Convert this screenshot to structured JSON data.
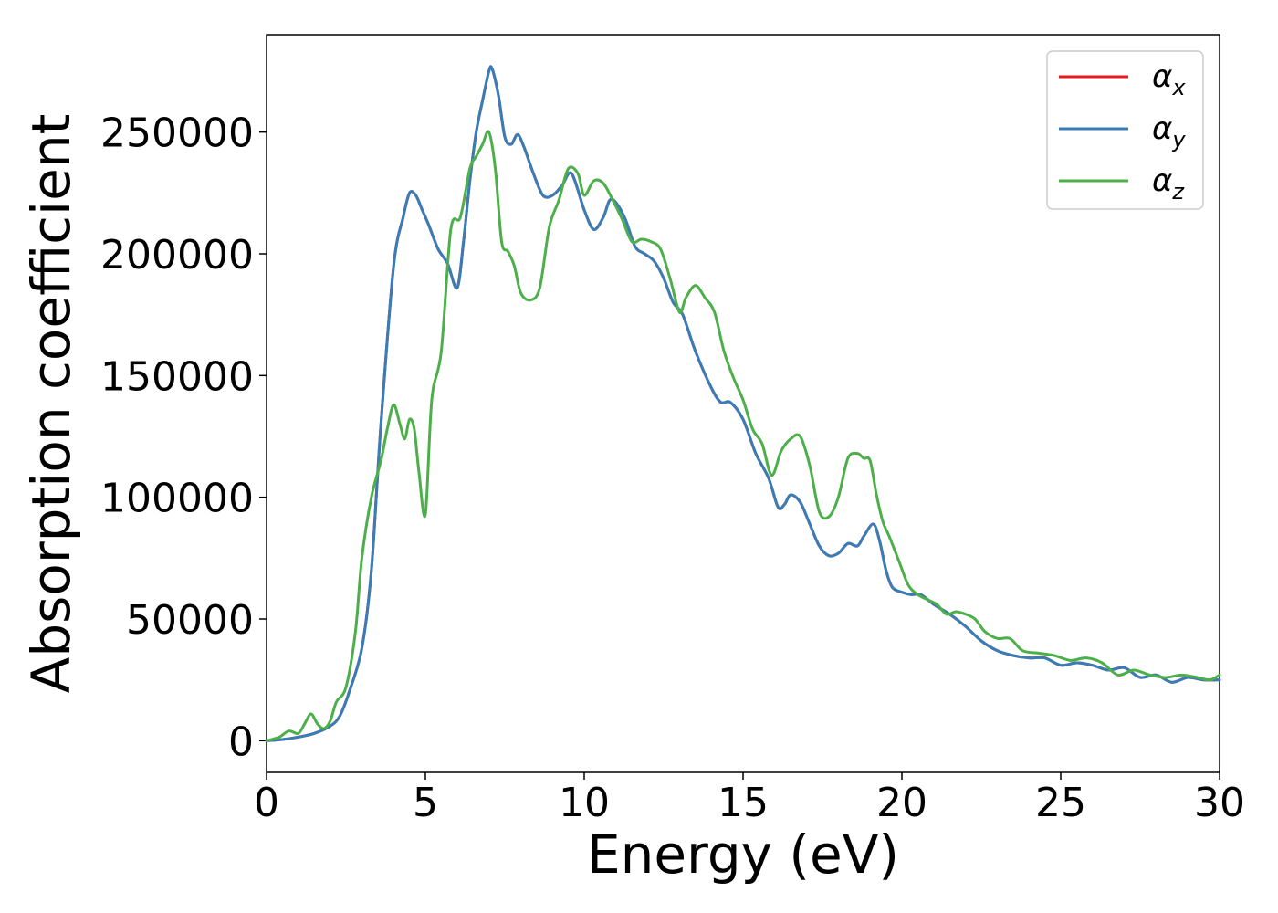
{
  "chart_data": {
    "type": "line",
    "title": "",
    "xlabel": "Energy (eV)",
    "ylabel": "Absorption coefficient",
    "xlim": [
      0,
      30
    ],
    "ylim": [
      -13000,
      290000
    ],
    "xticks": [
      0,
      5,
      10,
      15,
      20,
      25,
      30
    ],
    "yticks": [
      0,
      50000,
      100000,
      150000,
      200000,
      250000
    ],
    "xtick_labels": [
      "0",
      "5",
      "10",
      "15",
      "20",
      "25",
      "30"
    ],
    "ytick_labels": [
      "0",
      "50000",
      "100000",
      "150000",
      "200000",
      "250000"
    ],
    "grid": false,
    "legend_position": "top-right",
    "series": [
      {
        "name": "αx",
        "symbol": "α",
        "subscript": "x",
        "color": "#e41a1c",
        "x": [
          0,
          0.5,
          1.0,
          1.5,
          2.0,
          2.3,
          2.6,
          3.0,
          3.3,
          3.6,
          4.0,
          4.3,
          4.5,
          4.7,
          4.9,
          5.1,
          5.4,
          5.7,
          6.0,
          6.2,
          6.4,
          6.6,
          6.8,
          7.0,
          7.1,
          7.3,
          7.5,
          7.7,
          7.9,
          8.1,
          8.4,
          8.7,
          9.0,
          9.3,
          9.6,
          10.0,
          10.3,
          10.6,
          10.8,
          11.0,
          11.3,
          11.6,
          11.9,
          12.2,
          12.5,
          12.8,
          13.1,
          13.5,
          14.0,
          14.3,
          14.6,
          15.0,
          15.4,
          15.8,
          16.1,
          16.3,
          16.5,
          16.8,
          17.1,
          17.4,
          17.7,
          18.0,
          18.3,
          18.6,
          18.8,
          19.1,
          19.3,
          19.5,
          19.7,
          20.0,
          20.3,
          20.6,
          21.0,
          21.5,
          22.0,
          22.5,
          23.0,
          23.5,
          24.0,
          24.5,
          25.0,
          25.5,
          26.0,
          26.5,
          27.0,
          27.5,
          28.0,
          28.5,
          29.0,
          29.5,
          30.0
        ],
        "y": [
          0,
          500,
          1500,
          3000,
          6000,
          10000,
          20000,
          38000,
          70000,
          130000,
          195000,
          215000,
          225000,
          224000,
          218000,
          212000,
          202000,
          196000,
          186000,
          205000,
          230000,
          250000,
          263000,
          275000,
          276000,
          265000,
          248000,
          245000,
          249000,
          244000,
          233000,
          224000,
          224000,
          228000,
          233000,
          218000,
          210000,
          215000,
          222000,
          221000,
          214000,
          203000,
          200000,
          197000,
          190000,
          180000,
          175000,
          160000,
          145000,
          139000,
          139000,
          132000,
          118000,
          108000,
          96000,
          97000,
          101000,
          98000,
          89000,
          80000,
          76000,
          77000,
          81000,
          80000,
          84000,
          89000,
          82000,
          70000,
          63000,
          61000,
          60000,
          60000,
          56000,
          52000,
          47000,
          41000,
          37000,
          35000,
          34000,
          34000,
          31000,
          32000,
          31000,
          29000,
          30000,
          26000,
          27000,
          24000,
          26000,
          25000,
          25000
        ]
      },
      {
        "name": "αy",
        "symbol": "α",
        "subscript": "y",
        "color": "#377eb8",
        "x": [
          0,
          0.5,
          1.0,
          1.5,
          2.0,
          2.3,
          2.6,
          3.0,
          3.3,
          3.6,
          4.0,
          4.3,
          4.5,
          4.7,
          4.9,
          5.1,
          5.4,
          5.7,
          6.0,
          6.2,
          6.4,
          6.6,
          6.8,
          7.0,
          7.1,
          7.3,
          7.5,
          7.7,
          7.9,
          8.1,
          8.4,
          8.7,
          9.0,
          9.3,
          9.6,
          10.0,
          10.3,
          10.6,
          10.8,
          11.0,
          11.3,
          11.6,
          11.9,
          12.2,
          12.5,
          12.8,
          13.1,
          13.5,
          14.0,
          14.3,
          14.6,
          15.0,
          15.4,
          15.8,
          16.1,
          16.3,
          16.5,
          16.8,
          17.1,
          17.4,
          17.7,
          18.0,
          18.3,
          18.6,
          18.8,
          19.1,
          19.3,
          19.5,
          19.7,
          20.0,
          20.3,
          20.6,
          21.0,
          21.5,
          22.0,
          22.5,
          23.0,
          23.5,
          24.0,
          24.5,
          25.0,
          25.5,
          26.0,
          26.5,
          27.0,
          27.5,
          28.0,
          28.5,
          29.0,
          29.5,
          30.0
        ],
        "y": [
          0,
          500,
          1500,
          3000,
          6000,
          10000,
          20000,
          38000,
          70000,
          130000,
          195000,
          215000,
          225000,
          224000,
          218000,
          212000,
          202000,
          196000,
          186000,
          205000,
          230000,
          250000,
          263000,
          275000,
          276000,
          265000,
          248000,
          245000,
          249000,
          244000,
          233000,
          224000,
          224000,
          228000,
          233000,
          218000,
          210000,
          215000,
          222000,
          221000,
          214000,
          203000,
          200000,
          197000,
          190000,
          180000,
          175000,
          160000,
          145000,
          139000,
          139000,
          132000,
          118000,
          108000,
          96000,
          97000,
          101000,
          98000,
          89000,
          80000,
          76000,
          77000,
          81000,
          80000,
          84000,
          89000,
          82000,
          70000,
          63000,
          61000,
          60000,
          60000,
          56000,
          52000,
          47000,
          41000,
          37000,
          35000,
          34000,
          34000,
          31000,
          32000,
          31000,
          29000,
          30000,
          26000,
          27000,
          24000,
          26000,
          25000,
          25000
        ]
      },
      {
        "name": "αz",
        "symbol": "α",
        "subscript": "z",
        "color": "#4daf4a",
        "x": [
          0,
          0.4,
          0.7,
          1.0,
          1.2,
          1.4,
          1.6,
          1.8,
          2.0,
          2.2,
          2.5,
          2.8,
          3.0,
          3.3,
          3.6,
          3.8,
          4.0,
          4.2,
          4.35,
          4.5,
          4.65,
          4.8,
          5.0,
          5.2,
          5.5,
          5.8,
          6.1,
          6.4,
          6.6,
          6.8,
          7.0,
          7.2,
          7.4,
          7.6,
          7.8,
          8.0,
          8.3,
          8.6,
          8.9,
          9.2,
          9.5,
          9.8,
          10.0,
          10.3,
          10.6,
          10.9,
          11.2,
          11.5,
          11.8,
          12.1,
          12.4,
          12.7,
          13.0,
          13.2,
          13.5,
          13.8,
          14.1,
          14.4,
          14.7,
          15.0,
          15.3,
          15.6,
          15.9,
          16.2,
          16.5,
          16.8,
          17.1,
          17.4,
          17.7,
          18.0,
          18.3,
          18.6,
          18.8,
          19.0,
          19.2,
          19.4,
          19.6,
          19.9,
          20.2,
          20.5,
          20.8,
          21.1,
          21.4,
          21.7,
          22.0,
          22.3,
          22.6,
          23.0,
          23.4,
          23.8,
          24.3,
          24.8,
          25.3,
          25.8,
          26.3,
          26.8,
          27.3,
          27.8,
          28.3,
          28.8,
          29.3,
          29.7,
          30.0
        ],
        "y": [
          0,
          1500,
          4000,
          3000,
          7000,
          11000,
          7000,
          5000,
          8000,
          16000,
          22000,
          45000,
          75000,
          100000,
          115000,
          128000,
          138000,
          130000,
          124000,
          132000,
          128000,
          110000,
          93000,
          140000,
          160000,
          210000,
          215000,
          235000,
          240000,
          245000,
          250000,
          235000,
          205000,
          201000,
          195000,
          184000,
          181000,
          186000,
          211000,
          222000,
          235000,
          233000,
          224000,
          230000,
          229000,
          222000,
          214000,
          205000,
          206000,
          205000,
          202000,
          190000,
          176000,
          182000,
          187000,
          182000,
          176000,
          160000,
          149000,
          140000,
          128000,
          122000,
          109000,
          119000,
          124000,
          125000,
          113000,
          94000,
          92000,
          100000,
          116000,
          118000,
          116000,
          115000,
          101000,
          90000,
          84000,
          74000,
          64000,
          60000,
          58000,
          56000,
          52000,
          53000,
          52000,
          50000,
          45000,
          42000,
          42000,
          37000,
          36000,
          35000,
          33000,
          34000,
          32000,
          27000,
          29000,
          27000,
          26000,
          27000,
          26000,
          25000,
          27000
        ]
      }
    ]
  }
}
